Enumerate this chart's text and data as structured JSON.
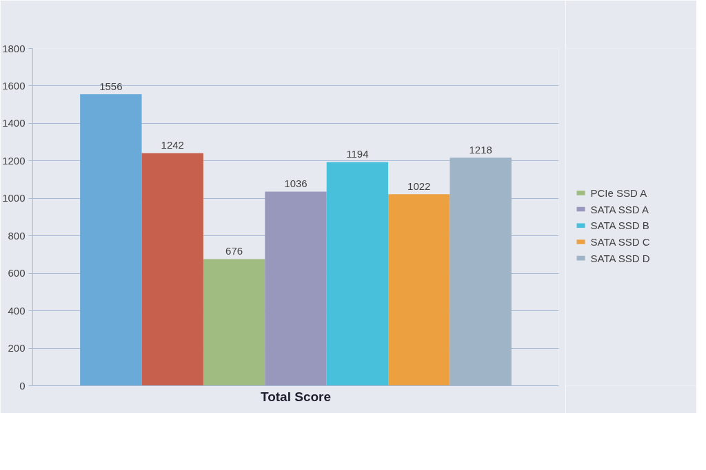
{
  "chart_data": {
    "type": "bar",
    "xlabel": "Total Score",
    "categories": [
      null
    ],
    "series": [
      {
        "color": "#6aaad8",
        "values": [
          1556
        ]
      },
      {
        "color": "#c8604e",
        "values": [
          1242
        ]
      },
      {
        "name": "PCIe SSD A",
        "color": "#a0bc80",
        "values": [
          676
        ]
      },
      {
        "name": "SATA SSD A",
        "color": "#9898bc",
        "values": [
          1036
        ]
      },
      {
        "name": "SATA SSD B",
        "color": "#48c0dc",
        "values": [
          1194
        ]
      },
      {
        "name": "SATA SSD C",
        "color": "#eca040",
        "values": [
          1022
        ]
      },
      {
        "name": "SATA SSD D",
        "color": "#a0b4c8",
        "values": [
          1218
        ]
      }
    ],
    "ylim": [
      0,
      1800
    ],
    "yticks": [
      0,
      200,
      400,
      600,
      800,
      1000,
      1200,
      1400,
      1600,
      1800
    ],
    "grid": "y",
    "legend": "right",
    "data_labels": true,
    "tick_labels": "y"
  }
}
